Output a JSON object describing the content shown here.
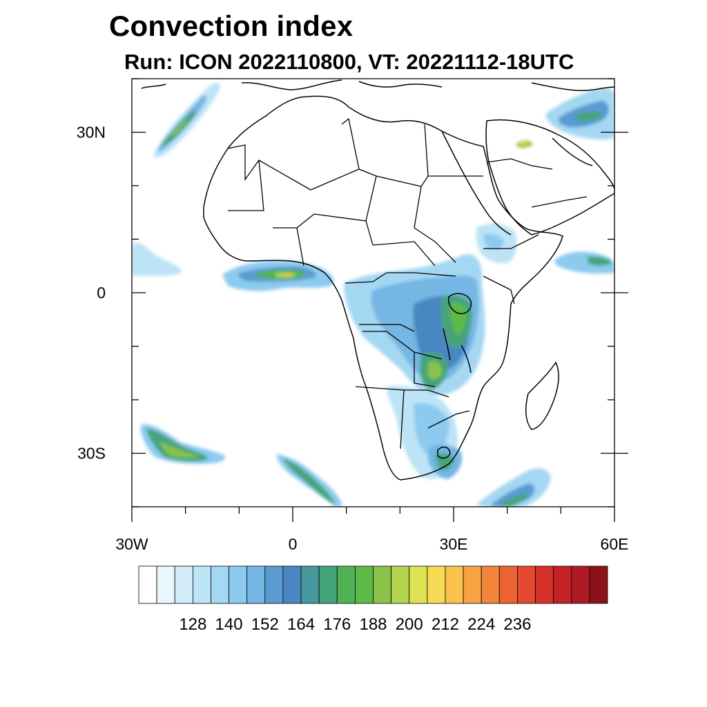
{
  "header": {
    "title": "Convection index",
    "subtitle": "Run: ICON 2022110800,  VT: 20221112-18UTC"
  },
  "map": {
    "lon_range": [
      -30,
      60
    ],
    "lat_range": [
      -40,
      40
    ],
    "lat_ticks": [
      {
        "value": 30,
        "label": "30N"
      },
      {
        "value": 0,
        "label": "0"
      },
      {
        "value": -30,
        "label": "30S"
      }
    ],
    "lon_ticks": [
      {
        "value": -30,
        "label": "30W"
      },
      {
        "value": 0,
        "label": "0"
      },
      {
        "value": 30,
        "label": "30E"
      },
      {
        "value": 60,
        "label": "60E"
      }
    ]
  },
  "colorbar": {
    "colors": [
      "#ffffff",
      "#eaf6fd",
      "#d2ecf9",
      "#bde3f6",
      "#a4d8f2",
      "#8ccbef",
      "#74b6e4",
      "#5a9bd2",
      "#4a87c2",
      "#46989c",
      "#46a47a",
      "#4fb356",
      "#5dba48",
      "#8ac24a",
      "#b4d34e",
      "#dfe253",
      "#f6dc54",
      "#f9c24d",
      "#f7a343",
      "#f1853a",
      "#eb6333",
      "#e3482f",
      "#d8302b",
      "#c52226",
      "#ad1a22",
      "#8c1219"
    ],
    "labels": [
      "128",
      "140",
      "152",
      "164",
      "176",
      "188",
      "200",
      "212",
      "224",
      "236"
    ]
  },
  "chart_data": {
    "type": "heatmap",
    "title": "Convection index",
    "subtitle": "Run: ICON 2022110800,  VT: 20221112-18UTC",
    "x_extent": [
      -30,
      60
    ],
    "y_extent": [
      -40,
      40
    ],
    "colorbar_labels": [
      128,
      140,
      152,
      164,
      176,
      188,
      200,
      212,
      224,
      236
    ]
  }
}
